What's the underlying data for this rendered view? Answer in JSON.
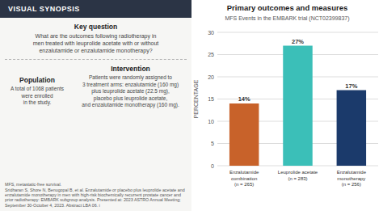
{
  "chart_data": {
    "type": "bar",
    "title": "Primary outcomes and measures",
    "subtitle": "MFS Events in the EMBARK trial (NCT02399837)",
    "categories": [
      "Enzalutamide\ncombination\n(n = 265)",
      "Leuprolide acetate\n(n = 283)",
      "Enzalutamide\nmonotherapy\n(n = 256)"
    ],
    "values": [
      14,
      27,
      17
    ],
    "value_labels": [
      "14%",
      "27%",
      "17%"
    ],
    "colors": [
      "#C8622A",
      "#3BBFB8",
      "#1B3A6B"
    ],
    "ylabel": "PERCENTAGE",
    "ylim": [
      0,
      30
    ],
    "yticks": [
      0,
      5,
      10,
      15,
      20,
      25,
      30
    ],
    "grid": true,
    "data_labels": true,
    "annotations": [
      "VISUAL SYNOPSIS",
      "Key question",
      "What are the outcomes following radiotherapy in\nmen treated with leuprolide acetate with or without\nenzalutamide or enzalutamide monotherapy?",
      "Intervention",
      "Patients were randomly assigned to\n3 treatment arms: enzalutamide (160 mg)\nplus leuprolide acetate (22.5 mg),\nplacebo plus leuprolide acetate,\nand enzalutamide monotherapy (160 mg).",
      "Population",
      "A total of 1068 patients\nwere enrolled\nin the study.",
      "MFS, metastatic-free survival.",
      "Sridharan S, Shore N, Benugopal B, et al. Enzalutamide or placebo plus leuprolide acetate and enzalutamide monotherapy in men with high-risk biochemically recurrent prostate cancer and",
      "prior radiotherapy: EMBARK subgroup analysis. Presented at: 2023 ASTRO Annual Meeting; September 30-October 4, 2023. Abstract LBA 06. i"
    ]
  }
}
